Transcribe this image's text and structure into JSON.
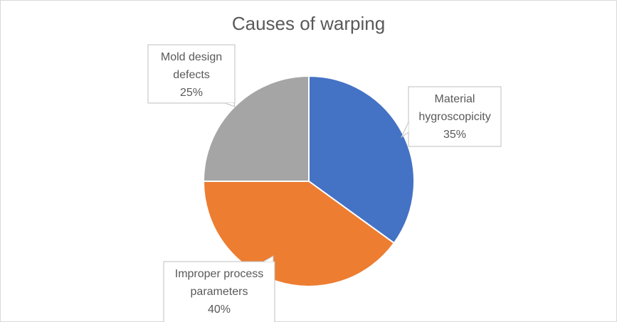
{
  "chart_data": {
    "type": "pie",
    "title": "Causes of warping",
    "slices": [
      {
        "label_lines": [
          "Material",
          "hygroscopicity"
        ],
        "value": 35,
        "value_label": "35%",
        "color": "#4472C4"
      },
      {
        "label_lines": [
          "Improper process",
          "parameters"
        ],
        "value": 40,
        "value_label": "40%",
        "color": "#ED7D31"
      },
      {
        "label_lines": [
          "Mold design",
          "defects"
        ],
        "value": 25,
        "value_label": "25%",
        "color": "#A5A5A5"
      }
    ],
    "legend": "none",
    "start_angle": "12 o'clock",
    "direction": "clockwise"
  }
}
